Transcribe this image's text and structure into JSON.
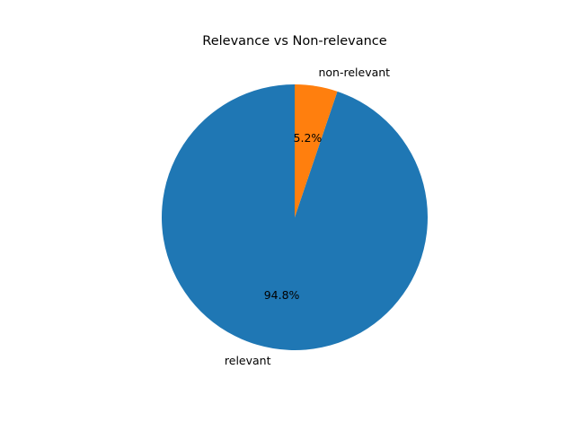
{
  "chart_data": {
    "type": "pie",
    "title": "Relevance vs Non-relevance",
    "start_angle_deg": 90,
    "direction": "counterclockwise",
    "slices": [
      {
        "label": "relevant",
        "value": 94.8,
        "pct_label": "94.8%",
        "color": "#1f77b4"
      },
      {
        "label": "non-relevant",
        "value": 5.2,
        "pct_label": "5.2%",
        "color": "#ff7f0e"
      }
    ]
  }
}
